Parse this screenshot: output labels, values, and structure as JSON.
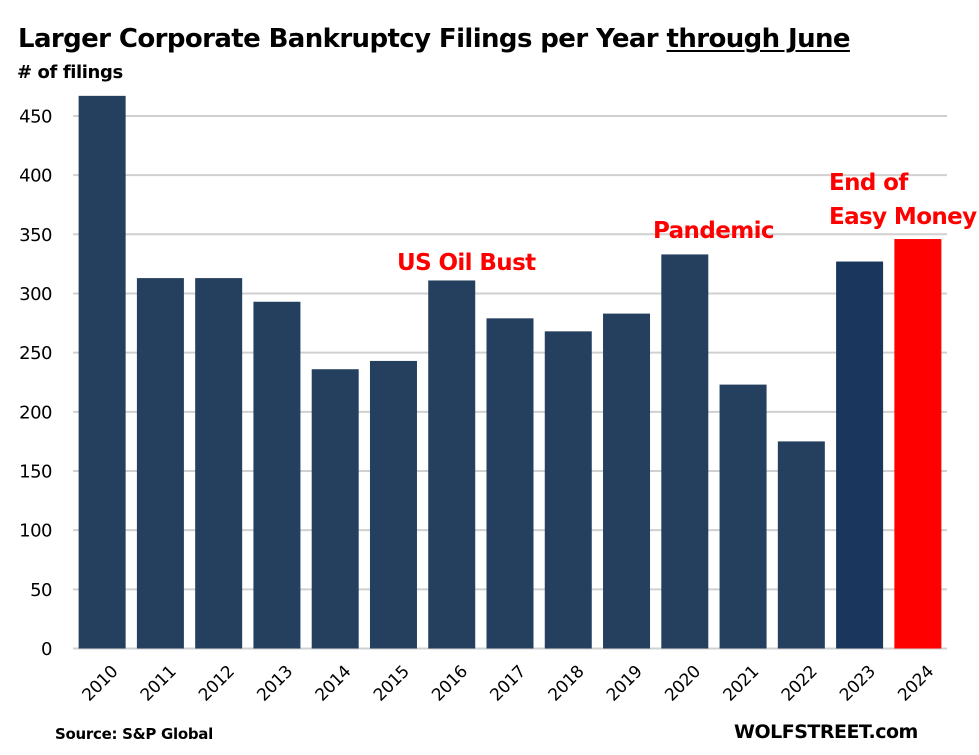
{
  "chart_data": {
    "type": "bar",
    "title_main": "Larger Corporate Bankruptcy Filings per Year ",
    "title_underlined": "through June",
    "ylabel": "# of filings",
    "xlabel": "",
    "categories": [
      "2010",
      "2011",
      "2012",
      "2013",
      "2014",
      "2015",
      "2016",
      "2017",
      "2018",
      "2019",
      "2020",
      "2021",
      "2022",
      "2023",
      "2024"
    ],
    "values": [
      467,
      313,
      313,
      293,
      236,
      243,
      311,
      279,
      268,
      283,
      333,
      223,
      175,
      327,
      346
    ],
    "bar_colors": [
      "#253f5f",
      "#253f5f",
      "#253f5f",
      "#253f5f",
      "#253f5f",
      "#253f5f",
      "#253f5f",
      "#253f5f",
      "#253f5f",
      "#253f5f",
      "#253f5f",
      "#253f5f",
      "#253f5f",
      "#1a365d",
      "#ff0000"
    ],
    "ylim": [
      0,
      470
    ],
    "yticks": [
      0,
      50,
      100,
      150,
      200,
      250,
      300,
      350,
      400,
      450
    ],
    "grid": true,
    "annotations": [
      {
        "lines": [
          "US Oil Bust"
        ],
        "category": "2016",
        "color": "#ff0000"
      },
      {
        "lines": [
          "Pandemic"
        ],
        "category": "2020",
        "color": "#ff0000"
      },
      {
        "lines": [
          "End of",
          "Easy Money"
        ],
        "category": "2024",
        "color": "#ff0000"
      }
    ],
    "legend": "none"
  },
  "footer": {
    "source": "Source: S&P Global",
    "credit": "WOLFSTREET.com"
  }
}
